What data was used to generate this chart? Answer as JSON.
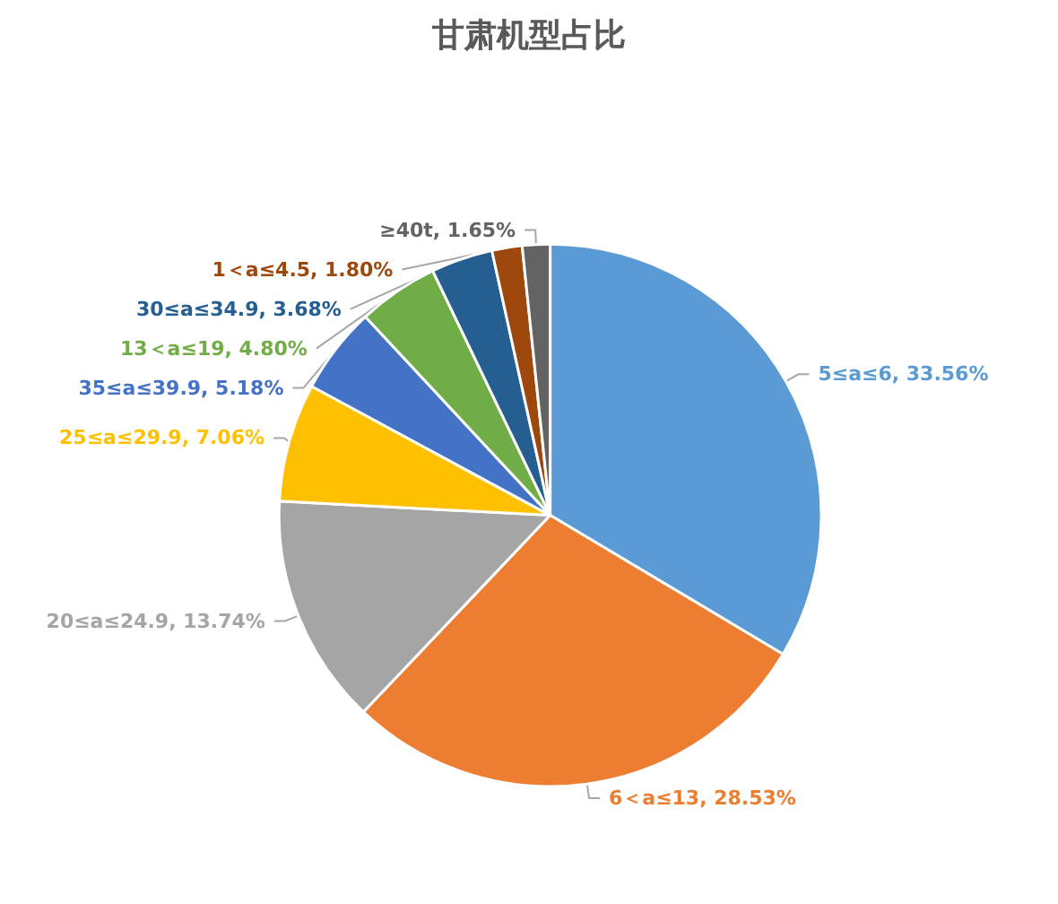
{
  "chart_data": {
    "type": "pie",
    "title": "甘肃机型占比",
    "categories": [
      "5≤a≤6",
      "6＜a≤13",
      "20≤a≤24.9",
      "25≤a≤29.9",
      "35≤a≤39.9",
      "13＜a≤19",
      "30≤a≤34.9",
      "1＜a≤4.5",
      "≥40t"
    ],
    "values": [
      33.56,
      28.53,
      13.74,
      7.06,
      5.18,
      4.8,
      3.68,
      1.8,
      1.65
    ],
    "colors": [
      "#5b9bd5",
      "#ed7d31",
      "#a5a5a5",
      "#ffc000",
      "#4472c4",
      "#70ad47",
      "#255e91",
      "#9e480e",
      "#636363"
    ],
    "value_labels": [
      "33.56%",
      "28.53%",
      "13.74%",
      "7.06%",
      "5.18%",
      "4.80%",
      "3.68%",
      "1.80%",
      "1.65%"
    ],
    "legend": false
  }
}
